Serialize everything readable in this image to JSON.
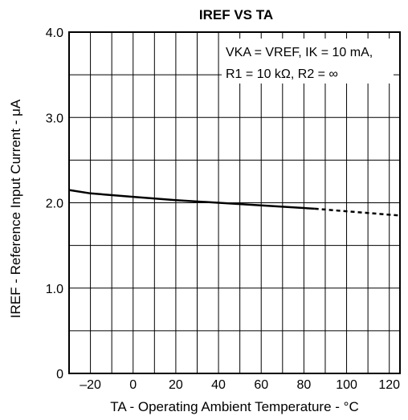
{
  "chart_data": {
    "type": "line",
    "title": "IREF VS TA",
    "xlabel": "TA - Operating Ambient Temperature - °C",
    "ylabel": "IREF - Reference Input Current - μA",
    "xlim": [
      -30,
      125
    ],
    "ylim": [
      0,
      4.0
    ],
    "x_ticks": [
      "–20",
      "0",
      "20",
      "40",
      "60",
      "80",
      "100",
      "120"
    ],
    "y_ticks": [
      "0",
      "1.0",
      "2.0",
      "3.0",
      "4.0"
    ],
    "grid": true,
    "annotation": {
      "line1": "VKA = VREF, IK = 10 mA,",
      "line2": "R1 = 10 kΩ, R2 = ∞"
    },
    "series": [
      {
        "style": "solid",
        "x": [
          -30,
          -20,
          0,
          20,
          40,
          60,
          85
        ],
        "y": [
          2.15,
          2.11,
          2.07,
          2.03,
          2.0,
          1.97,
          1.93
        ]
      },
      {
        "style": "dashed",
        "x": [
          85,
          100,
          125
        ],
        "y": [
          1.93,
          1.9,
          1.85
        ]
      }
    ]
  }
}
